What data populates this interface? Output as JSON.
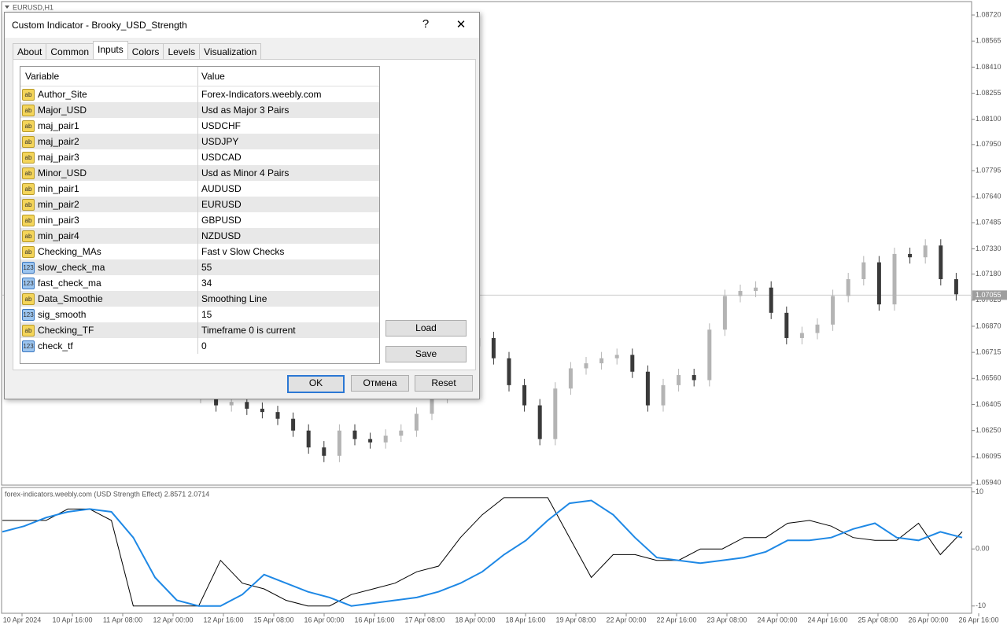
{
  "window_label": "EURUSD,H1",
  "chart_data": {
    "type": "candlestick",
    "ylim": [
      1.05926,
      1.08795
    ],
    "yticks": [
      {
        "value": 1.0872,
        "label": "1.08720"
      },
      {
        "value": 1.08565,
        "label": "1.08565"
      },
      {
        "value": 1.0841,
        "label": "1.08410"
      },
      {
        "value": 1.08255,
        "label": "1.08255"
      },
      {
        "value": 1.081,
        "label": "1.08100"
      },
      {
        "value": 1.0795,
        "label": "1.07950"
      },
      {
        "value": 1.07795,
        "label": "1.07795"
      },
      {
        "value": 1.0764,
        "label": "1.07640"
      },
      {
        "value": 1.07485,
        "label": "1.07485"
      },
      {
        "value": 1.0733,
        "label": "1.07330"
      },
      {
        "value": 1.0718,
        "label": "1.07180"
      },
      {
        "value": 1.07025,
        "label": "1.07025"
      },
      {
        "value": 1.0687,
        "label": "1.06870"
      },
      {
        "value": 1.06715,
        "label": "1.06715"
      },
      {
        "value": 1.0656,
        "label": "1.06560"
      },
      {
        "value": 1.06405,
        "label": "1.06405"
      },
      {
        "value": 1.0625,
        "label": "1.06250"
      },
      {
        "value": 1.06095,
        "label": "1.06095"
      },
      {
        "value": 1.0594,
        "label": "1.05940"
      }
    ],
    "current_price": {
      "value": 1.07055,
      "label": "1.07055"
    },
    "closes": [
      1.0645,
      1.064,
      1.0642,
      1.0638,
      1.0636,
      1.0632,
      1.0625,
      1.0615,
      1.061,
      1.0625,
      1.062,
      1.0618,
      1.0622,
      1.0625,
      1.0635,
      1.0645,
      1.066,
      1.0675,
      1.068,
      1.0668,
      1.0652,
      1.064,
      1.062,
      1.065,
      1.0662,
      1.0665,
      1.0668,
      1.067,
      1.066,
      1.064,
      1.0652,
      1.0658,
      1.0655,
      1.0685,
      1.0705,
      1.0708,
      1.071,
      1.0695,
      1.068,
      1.0683,
      1.0688,
      1.0705,
      1.0715,
      1.0725,
      1.07,
      1.073,
      1.0728,
      1.0735,
      1.0715,
      1.0706
    ],
    "up_color": "#b4b4b4",
    "down_color": "#3a3a3a",
    "categories": [
      "10 Apr 2024",
      "10 Apr 16:00",
      "11 Apr 08:00",
      "12 Apr 00:00",
      "12 Apr 16:00",
      "15 Apr 08:00",
      "16 Apr 00:00",
      "16 Apr 16:00",
      "17 Apr 08:00",
      "18 Apr 00:00",
      "18 Apr 16:00",
      "19 Apr 08:00",
      "22 Apr 00:00",
      "22 Apr 16:00",
      "23 Apr 08:00",
      "24 Apr 00:00",
      "24 Apr 16:00",
      "25 Apr 08:00",
      "26 Apr 00:00",
      "26 Apr 16:00"
    ]
  },
  "indicator": {
    "type": "line",
    "title": "forex-indicators.weebly.com (USD Strength Effect) 2.8571 2.0714",
    "ylim": [
      -11,
      10.5
    ],
    "yticks": [
      10,
      {
        "value": 0,
        "label": "0.00"
      },
      -10
    ],
    "series": [
      {
        "color": "#000000",
        "values": [
          5,
          5,
          5,
          7,
          7,
          5,
          -10,
          -10,
          -10,
          -10,
          -2,
          -6,
          -7,
          -9,
          -10,
          -10,
          -8,
          -7,
          -6,
          -4,
          -3,
          2,
          6,
          9,
          9,
          9,
          2,
          -5,
          -1,
          -1,
          -2,
          -2,
          0,
          0,
          2,
          2,
          4.5,
          5,
          4,
          2,
          1.5,
          1.5,
          4.5,
          -1,
          3
        ]
      },
      {
        "color": "#1e88e5",
        "values": [
          3,
          4,
          5.5,
          6.5,
          7,
          6.5,
          2,
          -5,
          -9,
          -10,
          -10,
          -8,
          -4.5,
          -6,
          -7.5,
          -8.5,
          -10,
          -9.5,
          -9,
          -8.5,
          -7.5,
          -6,
          -4,
          -1,
          1.5,
          5,
          8,
          8.5,
          6,
          2,
          -1.5,
          -2,
          -2.5,
          -2,
          -1.5,
          -0.5,
          1.5,
          1.5,
          2,
          3.5,
          4.5,
          2,
          1.5,
          3,
          2
        ]
      }
    ]
  },
  "dialog": {
    "title": "Custom Indicator - Brooky_USD_Strength",
    "help": "?",
    "close": "✕",
    "tabs": [
      "About",
      "Common",
      "Inputs",
      "Colors",
      "Levels",
      "Visualization"
    ],
    "table": {
      "header": [
        "Variable",
        "Value"
      ],
      "rows": [
        [
          "ab",
          "Author_Site",
          "Forex-Indicators.weebly.com"
        ],
        [
          "ab",
          "Major_USD",
          "Usd as Major 3 Pairs"
        ],
        [
          "ab",
          "maj_pair1",
          "USDCHF"
        ],
        [
          "ab",
          "maj_pair2",
          "USDJPY"
        ],
        [
          "ab",
          "maj_pair3",
          "USDCAD"
        ],
        [
          "ab",
          "Minor_USD",
          "Usd as Minor 4 Pairs"
        ],
        [
          "ab",
          "min_pair1",
          "AUDUSD"
        ],
        [
          "ab",
          "min_pair2",
          "EURUSD"
        ],
        [
          "ab",
          "min_pair3",
          "GBPUSD"
        ],
        [
          "ab",
          "min_pair4",
          "NZDUSD"
        ],
        [
          "ab",
          "Checking_MAs",
          "Fast v Slow Checks"
        ],
        [
          "123",
          "slow_check_ma",
          "55"
        ],
        [
          "123",
          "fast_check_ma",
          "34"
        ],
        [
          "ab",
          "Data_Smoothie",
          "Smoothing Line"
        ],
        [
          "123",
          "sig_smooth",
          "15"
        ],
        [
          "ab",
          "Checking_TF",
          "Timeframe 0 is current"
        ],
        [
          "123",
          "check_tf",
          "0"
        ]
      ]
    },
    "buttons": {
      "load": "Load",
      "save": "Save",
      "ok": "OK",
      "cancel": "Отмена",
      "reset": "Reset"
    }
  }
}
